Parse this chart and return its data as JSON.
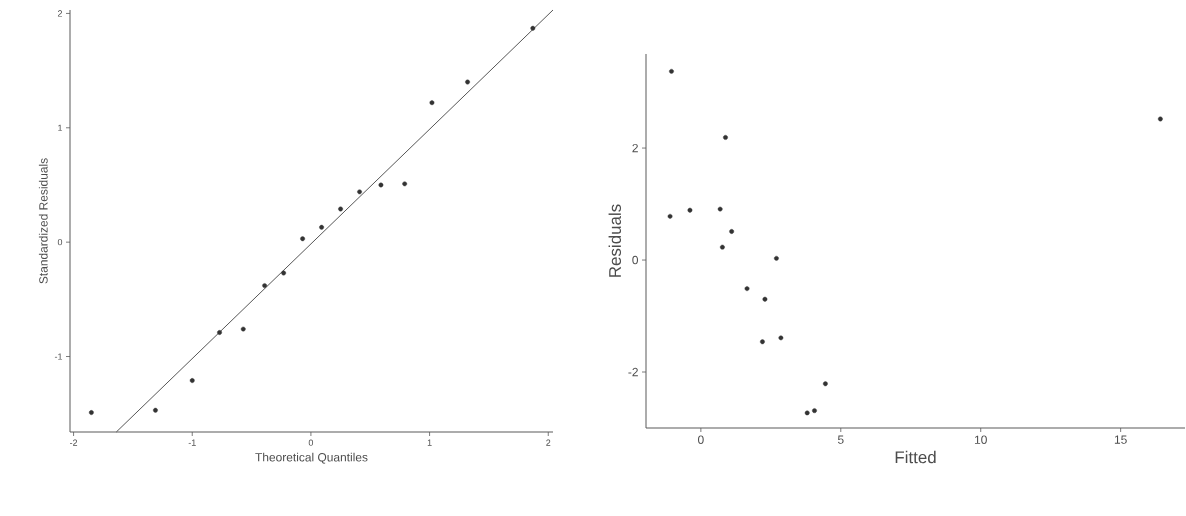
{
  "chart_data": [
    {
      "type": "scatter",
      "xlabel": "Theoretical Quantiles",
      "ylabel": "Standardized Residuals",
      "xlim": [
        -2.03,
        2.04
      ],
      "ylim": [
        -1.66,
        2.03
      ],
      "xticks": [
        -2,
        -1,
        0,
        1,
        2
      ],
      "yticks": [
        -1,
        0,
        1,
        2
      ],
      "series": [
        {
          "color": "#333333",
          "marker": "circle",
          "x": [
            -1.85,
            -1.31,
            -1.0,
            -0.77,
            -0.57,
            -0.39,
            -0.23,
            -0.07,
            0.09,
            0.25,
            0.41,
            0.59,
            0.79,
            1.02,
            1.32,
            1.87
          ],
          "values": [
            -1.49,
            -1.47,
            -1.21,
            -0.79,
            -0.76,
            -0.38,
            -0.27,
            0.03,
            0.13,
            0.29,
            0.44,
            0.5,
            0.51,
            1.22,
            1.4,
            1.87
          ]
        },
        {
          "type": "line",
          "color": "#555555",
          "x": [
            -1.64,
            2.04
          ],
          "values": [
            -1.66,
            2.03
          ]
        }
      ]
    },
    {
      "type": "scatter",
      "xlabel": "Fitted",
      "ylabel": "Residuals",
      "xlim": [
        -1.96,
        17.3
      ],
      "ylim": [
        -3.0,
        3.68
      ],
      "xticks": [
        0,
        5,
        10,
        15
      ],
      "yticks": [
        -2,
        0,
        2
      ],
      "series": [
        {
          "color": "#333333",
          "marker": "circle",
          "x": [
            -1.05,
            16.42,
            0.88,
            -1.1,
            -0.39,
            0.69,
            1.1,
            0.77,
            2.7,
            1.65,
            2.29,
            2.2,
            2.86,
            4.45,
            3.8,
            4.06
          ],
          "values": [
            3.37,
            2.52,
            2.19,
            0.78,
            0.89,
            0.91,
            0.51,
            0.23,
            0.03,
            -0.51,
            -0.7,
            -1.46,
            -1.39,
            -2.21,
            -2.73,
            -2.69
          ]
        }
      ]
    }
  ]
}
